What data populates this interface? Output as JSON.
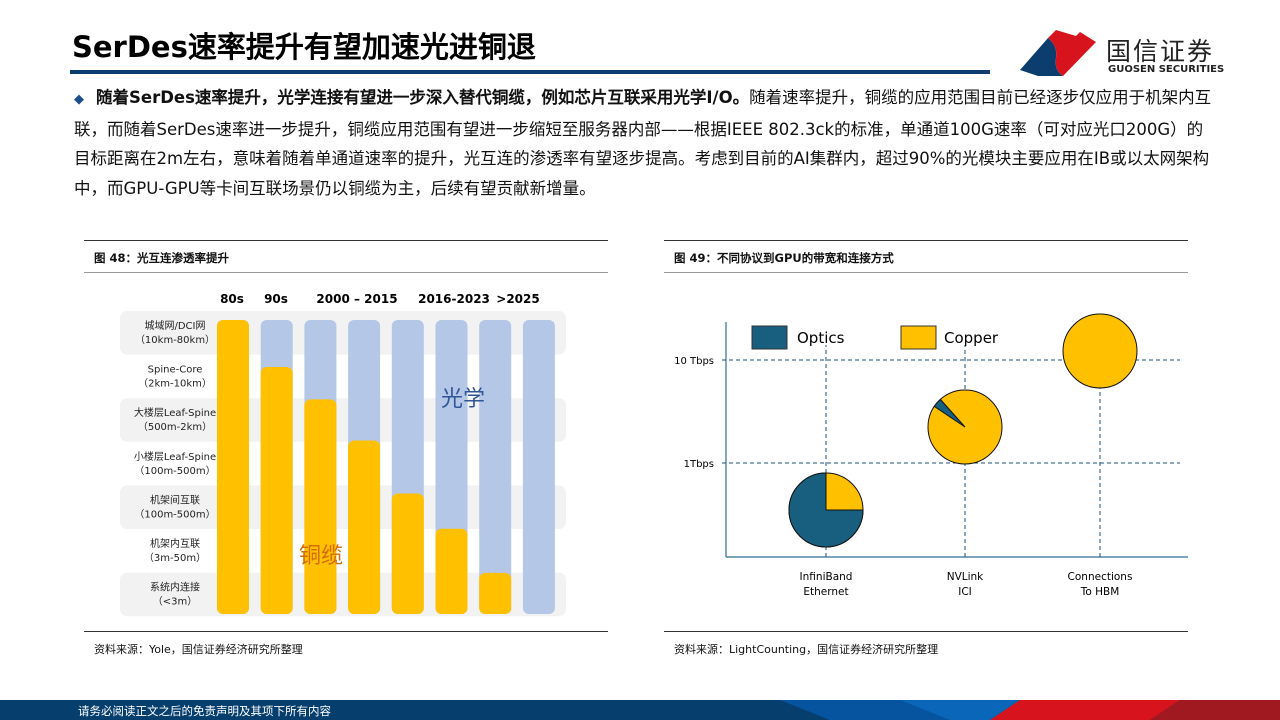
{
  "header": {
    "title": "SerDes速率提升有望加速光进铜退",
    "logo_cn": "国信证券",
    "logo_en": "GUOSEN SECURITIES"
  },
  "body": {
    "bold": "随着SerDes速率提升，光学连接有望进一步深入替代铜缆，例如芯片互联采用光学I/O。",
    "text": "随着速率提升，铜缆的应用范围目前已经逐步仅应用于机架内互联，而随着SerDes速率进一步提升，铜缆应用范围有望进一步缩短至服务器内部——根据IEEE 802.3ck的标准，单通道100G速率（可对应光口200G）的目标距离在2m左右，意味着随着单通道速率的提升，光互连的渗透率有望逐步提高。考虑到目前的AI集群内，超过90%的光模块主要应用在IB或以太网架构中，而GPU-GPU等卡间互联场景仍以铜缆为主，后续有望贡献新增量。"
  },
  "fig48": {
    "title": "图 48：光互连渗透率提升",
    "source": "资料来源：Yole，国信证券经济研究所整理"
  },
  "fig49": {
    "title": "图 49：不同协议到GPU的带宽和连接方式",
    "source": "资料来源：LightCounting，国信证券经济研究所整理"
  },
  "footer": {
    "disclaimer": "请务必阅读正文之后的免责声明及其项下所有内容"
  },
  "colors": {
    "copper": "#FFC000",
    "optics_light": "#B4C7E7",
    "optics_dark": "#175E7F",
    "navy": "#0b3d6e",
    "red": "#d7141e"
  },
  "chart_data": [
    {
      "type": "bar",
      "stacked": true,
      "period_labels": [
        "80s",
        "90s",
        "2000 – 2015",
        "2016-2023",
        ">2025"
      ],
      "rows": [
        [
          "城域网/DCI网",
          "（10km-80km）"
        ],
        [
          "Spine-Core",
          "（2km-10km）"
        ],
        [
          "大楼层Leaf-Spine",
          "（500m-2km）"
        ],
        [
          "小楼层Leaf-Spine",
          "（100m-500m）"
        ],
        [
          "机架间互联",
          "（100m-500m）"
        ],
        [
          "机架内互联",
          "（3m-50m）"
        ],
        [
          "系统内连接",
          "（<3m）"
        ]
      ],
      "series": [
        {
          "name": "铜缆",
          "values": [
            1.0,
            0.84,
            0.73,
            0.59,
            0.41,
            0.29,
            0.14,
            0
          ]
        },
        {
          "name": "光学",
          "values": [
            0,
            0.16,
            0.27,
            0.41,
            0.59,
            0.71,
            0.86,
            1.0
          ]
        }
      ]
    },
    {
      "type": "scatter",
      "subtype": "pie-bubbles",
      "legend": [
        "Optics",
        "Copper"
      ],
      "legend_position": "top-left",
      "y_ticks": [
        "10 Tbps",
        "1Tbps"
      ],
      "y_scale": "log",
      "categories": [
        [
          "InfiniBand",
          "Ethernet"
        ],
        [
          "NVLink",
          "ICI"
        ],
        [
          "Connections",
          "To HBM"
        ]
      ],
      "points": [
        {
          "bandwidth_tbps": 0.3,
          "optics": 0.75,
          "copper": 0.25
        },
        {
          "bandwidth_tbps": 3,
          "optics": 0.04,
          "copper": 0.96
        },
        {
          "bandwidth_tbps": 12,
          "optics": 0,
          "copper": 1.0
        }
      ]
    }
  ]
}
